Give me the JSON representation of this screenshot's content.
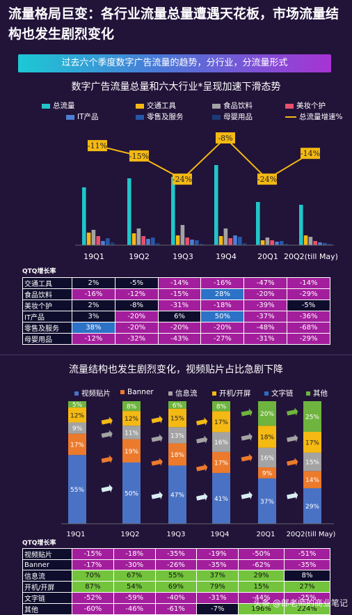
{
  "header": {
    "title": "流量格局巨变：各行业流量总量遭遇天花板，市场流量结构也发生剧烈变化",
    "banner": "过去六个季度数字广告流量的趋势，分行业，分流量形式"
  },
  "chart_data": [
    {
      "type": "bar",
      "title": "数字广告流量总量和六大行业*呈现加速下滑态势",
      "categories": [
        "19Q1",
        "19Q2",
        "19Q3",
        "19Q4",
        "20Q1",
        "20Q2(till May)"
      ],
      "series": [
        {
          "name": "总流量",
          "color": "#21c5c9",
          "values": [
            83,
            96,
            98,
            115,
            62,
            58
          ]
        },
        {
          "name": "交通工具",
          "color": "#f4b913",
          "values": [
            18,
            17,
            14,
            13,
            7,
            14
          ]
        },
        {
          "name": "食品饮料",
          "color": "#a3a3a3",
          "values": [
            22,
            24,
            29,
            24,
            11,
            12
          ]
        },
        {
          "name": "美妆个护",
          "color": "#e8506c",
          "values": [
            13,
            13,
            11,
            10,
            7,
            6
          ]
        },
        {
          "name": "IT产品",
          "color": "#4f7fd3",
          "values": [
            6,
            9,
            8,
            14,
            5,
            4
          ]
        },
        {
          "name": "零售及服务",
          "color": "#2757a8",
          "values": [
            10,
            11,
            7,
            12,
            6,
            3
          ]
        },
        {
          "name": "母婴用品",
          "color": "#1b3a7a",
          "values": [
            4,
            3,
            2,
            3,
            2,
            2
          ]
        }
      ],
      "growth_line": {
        "name": "总流量增速%",
        "color": "#f4b913",
        "values": [
          -11,
          -15,
          -24,
          -8,
          -24,
          -14
        ],
        "labels": [
          "-11%",
          "-15%",
          "-24%",
          "-8%",
          "-24%",
          "-14%"
        ]
      },
      "table": {
        "label": "QTQ增长率",
        "rows": [
          {
            "name": "交通工具",
            "cells": [
              "2%",
              "-5%",
              "-14%",
              "-16%",
              "-47%",
              "-14%"
            ],
            "colors": [
              "dark",
              "dark",
              "mag",
              "mag",
              "mag",
              "mag"
            ]
          },
          {
            "name": "食品饮料",
            "cells": [
              "-16%",
              "-12%",
              "-15%",
              "28%",
              "-20%",
              "-29%"
            ],
            "colors": [
              "mag",
              "mag",
              "mag",
              "blue",
              "mag",
              "mag"
            ]
          },
          {
            "name": "美妆个护",
            "cells": [
              "2%",
              "-8%",
              "-31%",
              "-18%",
              "-39%",
              "-5%"
            ],
            "colors": [
              "dark",
              "dark",
              "mag",
              "mag",
              "mag",
              "dark"
            ]
          },
          {
            "name": "IT产品",
            "cells": [
              "3%",
              "-20%",
              "6%",
              "50%",
              "-37%",
              "-36%"
            ],
            "colors": [
              "dark",
              "mag",
              "dark",
              "blue",
              "mag",
              "mag"
            ]
          },
          {
            "name": "零售及服务",
            "cells": [
              "38%",
              "-20%",
              "-20%",
              "-20%",
              "-48%",
              "-68%"
            ],
            "colors": [
              "blue",
              "mag",
              "mag",
              "mag",
              "mag",
              "mag"
            ]
          },
          {
            "name": "母婴用品",
            "cells": [
              "-12%",
              "-32%",
              "-43%",
              "-27%",
              "-31%",
              "-29%"
            ],
            "colors": [
              "mag",
              "mag",
              "mag",
              "mag",
              "mag",
              "mag"
            ]
          }
        ]
      }
    },
    {
      "type": "bar",
      "title": "流量结构也发生剧烈变化，视频贴片占比急剧下降",
      "categories": [
        "19Q1",
        "19Q2",
        "19Q3",
        "19Q4",
        "20Q1",
        "20Q2(till  May)"
      ],
      "series": [
        {
          "name": "视频贴片",
          "color": "#4a72c4",
          "values": [
            55,
            50,
            47,
            41,
            37,
            29
          ],
          "labels": [
            "55%",
            "50%",
            "47%",
            "41%",
            "37%",
            "29%"
          ]
        },
        {
          "name": "Banner",
          "color": "#ec7a2c",
          "values": [
            17,
            19,
            18,
            17,
            9,
            14
          ],
          "labels": [
            "17%",
            "19%",
            "18%",
            "17%",
            "9%",
            "14%"
          ]
        },
        {
          "name": "信息流",
          "color": "#a3a3a3",
          "values": [
            9,
            11,
            13,
            16,
            16,
            15
          ],
          "labels": [
            "9%",
            "11%",
            "13%",
            "16%",
            "16%",
            "15%"
          ]
        },
        {
          "name": "开机/开屏",
          "color": "#f4b913",
          "values": [
            12,
            12,
            15,
            17,
            18,
            17
          ],
          "labels": [
            "12%",
            "12%",
            "15%",
            "17%",
            "18%",
            "17%"
          ]
        },
        {
          "name": "文字链",
          "color": "#2a6ec2",
          "values": [
            0,
            0,
            0,
            0,
            0,
            0
          ],
          "labels": [
            "",
            "",
            "",
            "",
            "",
            ""
          ]
        },
        {
          "name": "其他",
          "color": "#6eb43e",
          "values": [
            5,
            8,
            6,
            8,
            20,
            25
          ],
          "labels": [
            "5%",
            "8%",
            "6%",
            "8%",
            "20%",
            "25%"
          ]
        }
      ],
      "table": {
        "label": "QTQ增长率",
        "rows": [
          {
            "name": "视频贴片",
            "cells": [
              "-15%",
              "-18%",
              "-35%",
              "-19%",
              "-50%",
              "-51%"
            ],
            "colors": [
              "mag",
              "mag",
              "mag",
              "mag",
              "mag",
              "mag"
            ]
          },
          {
            "name": "Banner",
            "cells": [
              "-17%",
              "-30%",
              "-26%",
              "-35%",
              "-62%",
              "-35%"
            ],
            "colors": [
              "mag",
              "mag",
              "mag",
              "mag",
              "mag",
              "mag"
            ]
          },
          {
            "name": "信息流",
            "cells": [
              "70%",
              "67%",
              "55%",
              "37%",
              "29%",
              "8%"
            ],
            "colors": [
              "green",
              "green",
              "green",
              "green",
              "green",
              "dark"
            ]
          },
          {
            "name": "开机/开屏",
            "cells": [
              "87%",
              "54%",
              "69%",
              "79%",
              "15%",
              "27%"
            ],
            "colors": [
              "green",
              "green",
              "green",
              "green",
              "green",
              "green"
            ]
          },
          {
            "name": "文字链",
            "cells": [
              "-52%",
              "-59%",
              "-40%",
              "-31%",
              "-44%",
              "-25%"
            ],
            "colors": [
              "mag",
              "mag",
              "mag",
              "mag",
              "mag",
              "mag"
            ]
          },
          {
            "name": "其他",
            "cells": [
              "-60%",
              "-46%",
              "-61%",
              "-7%",
              "196%",
              "224%"
            ],
            "colors": [
              "mag",
              "mag",
              "mag",
              "dark",
              "green",
              "green"
            ]
          }
        ]
      }
    }
  ],
  "watermark": "头条 @郎老师的商业笔记"
}
